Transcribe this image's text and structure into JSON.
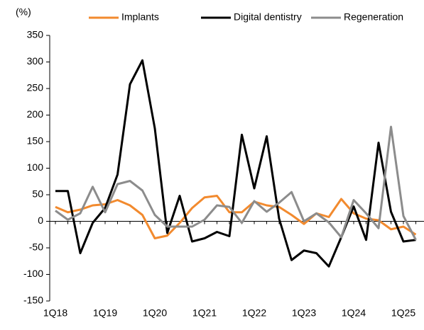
{
  "chart_data": {
    "type": "line",
    "y_label": "(%)",
    "categories": [
      "1Q18",
      null,
      null,
      null,
      "1Q19",
      null,
      null,
      null,
      "1Q20",
      null,
      null,
      null,
      "1Q21",
      null,
      null,
      null,
      "1Q22",
      null,
      null,
      null,
      "1Q23",
      null,
      null,
      null,
      "1Q24",
      null,
      null,
      null,
      "1Q25",
      null
    ],
    "series": [
      {
        "name": "Implants",
        "color": "#f28a2e",
        "values": [
          27,
          17,
          22,
          30,
          32,
          40,
          30,
          12,
          -32,
          -27,
          -3,
          25,
          45,
          48,
          17,
          17,
          37,
          30,
          27,
          12,
          -5,
          15,
          8,
          42,
          15,
          5,
          2,
          -15,
          -10,
          -25
        ]
      },
      {
        "name": "Digital dentistry",
        "color": "#000000",
        "values": [
          57,
          57,
          -60,
          -3,
          25,
          88,
          258,
          303,
          175,
          -22,
          48,
          -38,
          -32,
          -20,
          -28,
          163,
          62,
          160,
          5,
          -73,
          -55,
          -60,
          -85,
          -30,
          28,
          -35,
          148,
          18,
          -38,
          -35
        ]
      },
      {
        "name": "Regeneration",
        "color": "#8c8c8c",
        "values": [
          20,
          3,
          15,
          65,
          17,
          70,
          76,
          58,
          12,
          -10,
          -10,
          -10,
          3,
          30,
          27,
          -3,
          38,
          18,
          35,
          55,
          0,
          15,
          -2,
          -30,
          40,
          15,
          -13,
          178,
          10,
          -35
        ]
      }
    ],
    "ylim": [
      -150,
      350
    ],
    "yticks": [
      -150,
      -100,
      -50,
      0,
      50,
      100,
      150,
      200,
      250,
      300,
      350
    ],
    "legend": "top"
  }
}
